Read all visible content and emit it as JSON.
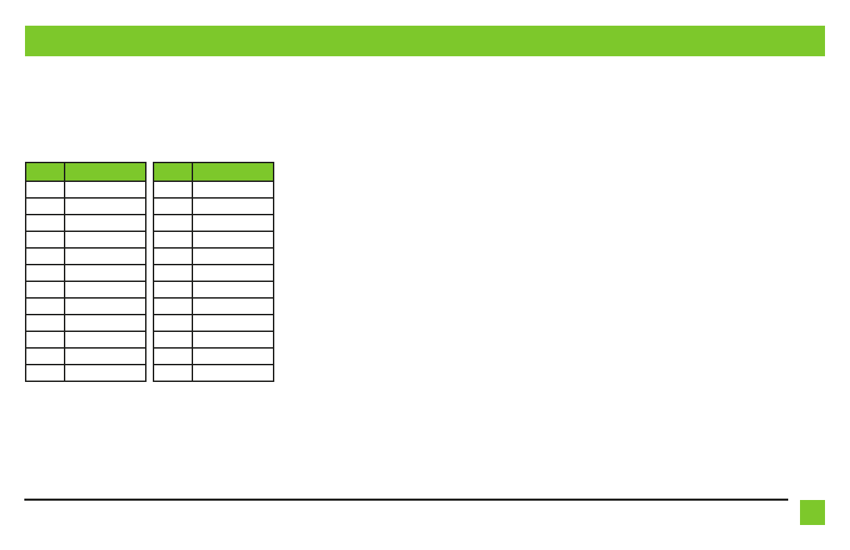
{
  "colors": {
    "accent_green": "#7dc82b",
    "line_black": "#1d1d1b",
    "page_background": "#ffffff"
  },
  "header_bar": {
    "title": ""
  },
  "tables": [
    {
      "name": "left-table",
      "columns": [
        "",
        ""
      ],
      "rows": [
        [
          "",
          ""
        ],
        [
          "",
          ""
        ],
        [
          "",
          ""
        ],
        [
          "",
          ""
        ],
        [
          "",
          ""
        ],
        [
          "",
          ""
        ],
        [
          "",
          ""
        ],
        [
          "",
          ""
        ],
        [
          "",
          ""
        ],
        [
          "",
          ""
        ],
        [
          "",
          ""
        ],
        [
          "",
          ""
        ]
      ]
    },
    {
      "name": "right-table",
      "columns": [
        "",
        ""
      ],
      "rows": [
        [
          "",
          ""
        ],
        [
          "",
          ""
        ],
        [
          "",
          ""
        ],
        [
          "",
          ""
        ],
        [
          "",
          ""
        ],
        [
          "",
          ""
        ],
        [
          "",
          ""
        ],
        [
          "",
          ""
        ],
        [
          "",
          ""
        ],
        [
          "",
          ""
        ],
        [
          "",
          ""
        ],
        [
          "",
          ""
        ]
      ]
    }
  ],
  "footer": {
    "page_number": ""
  }
}
